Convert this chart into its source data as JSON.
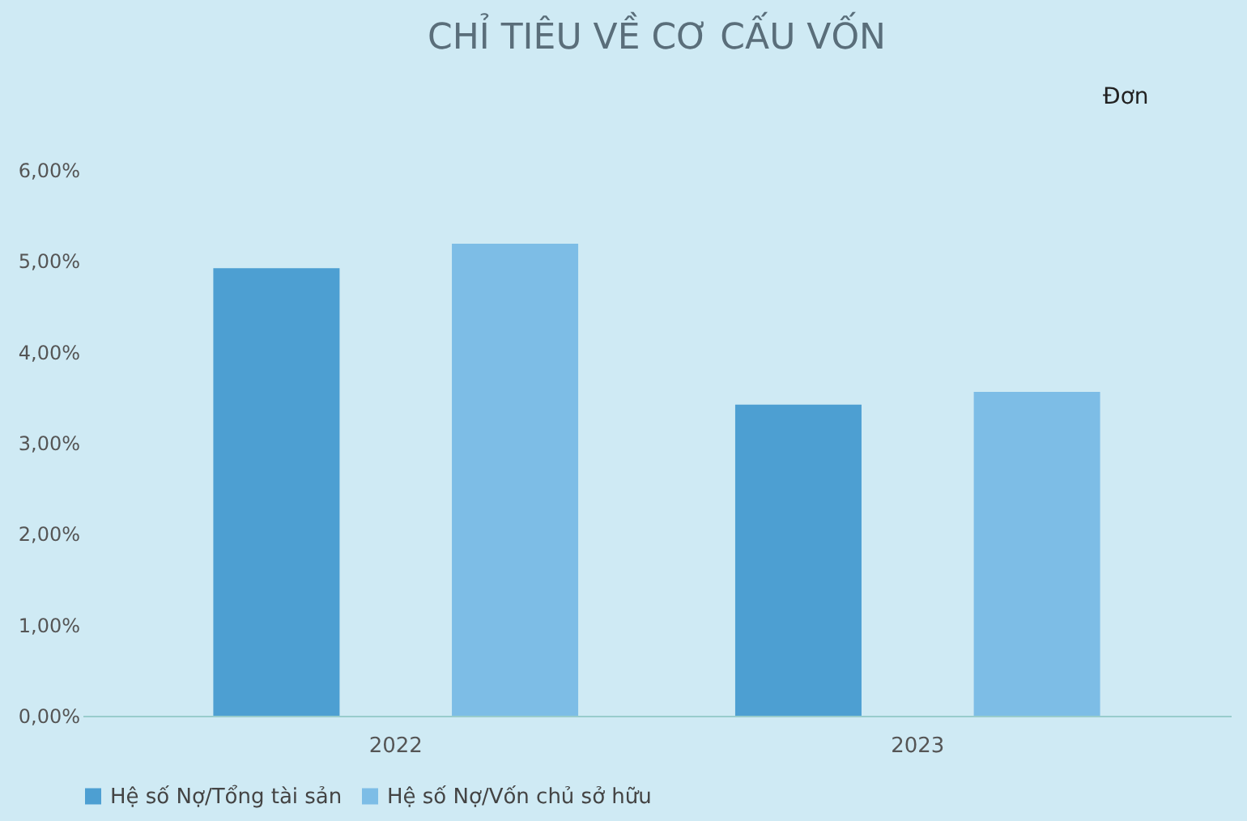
{
  "chart_data": {
    "type": "bar",
    "title": "CHỈ TIÊU VỀ CƠ CẤU VỐN",
    "categories": [
      "2022",
      "2023"
    ],
    "series": [
      {
        "name": "Hệ số Nợ/Tổng tài sản",
        "color": "#4d9fd2",
        "values": [
          4.92,
          3.42
        ]
      },
      {
        "name": "Hệ số Nợ/Vốn chủ sở hữu",
        "color": "#7dbde6",
        "values": [
          5.19,
          3.56
        ]
      }
    ],
    "ylim": [
      0,
      6
    ],
    "yticks": [
      {
        "value": 0,
        "label": "0,00%"
      },
      {
        "value": 1,
        "label": "1,00%"
      },
      {
        "value": 2,
        "label": "2,00%"
      },
      {
        "value": 3,
        "label": "3,00%"
      },
      {
        "value": 4,
        "label": "4,00%"
      },
      {
        "value": 5,
        "label": "5,00%"
      },
      {
        "value": 6,
        "label": "6,00%"
      }
    ],
    "grid": false,
    "legend": "bottom",
    "annotations": [
      "Đơn"
    ]
  }
}
